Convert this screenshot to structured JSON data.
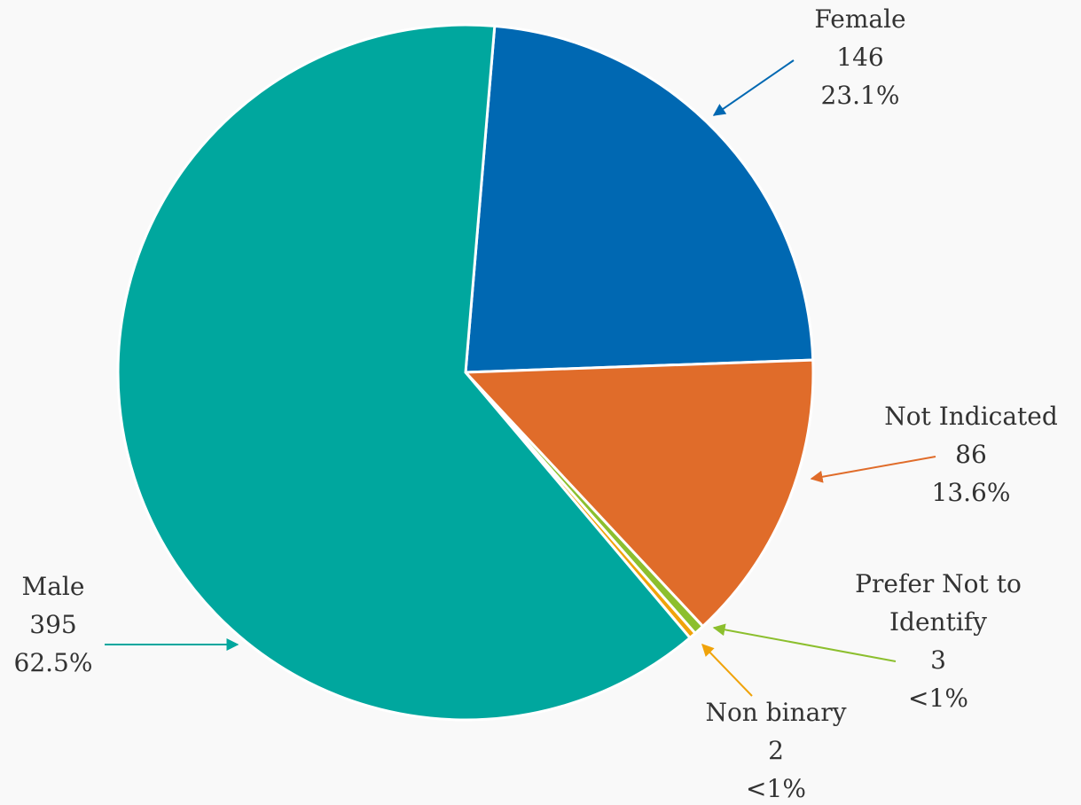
{
  "chart_data": {
    "type": "pie",
    "categories": [
      "Female",
      "Not Indicated",
      "Prefer Not to Identify",
      "Non binary",
      "Male"
    ],
    "values": [
      146,
      86,
      3,
      2,
      395
    ],
    "percent_labels": [
      "23.1%",
      "13.6%",
      "<1%",
      "<1%",
      "62.5%"
    ],
    "colors": [
      "#0068b2",
      "#e06c2a",
      "#8cbf2e",
      "#f0a30a",
      "#00a79e"
    ]
  }
}
